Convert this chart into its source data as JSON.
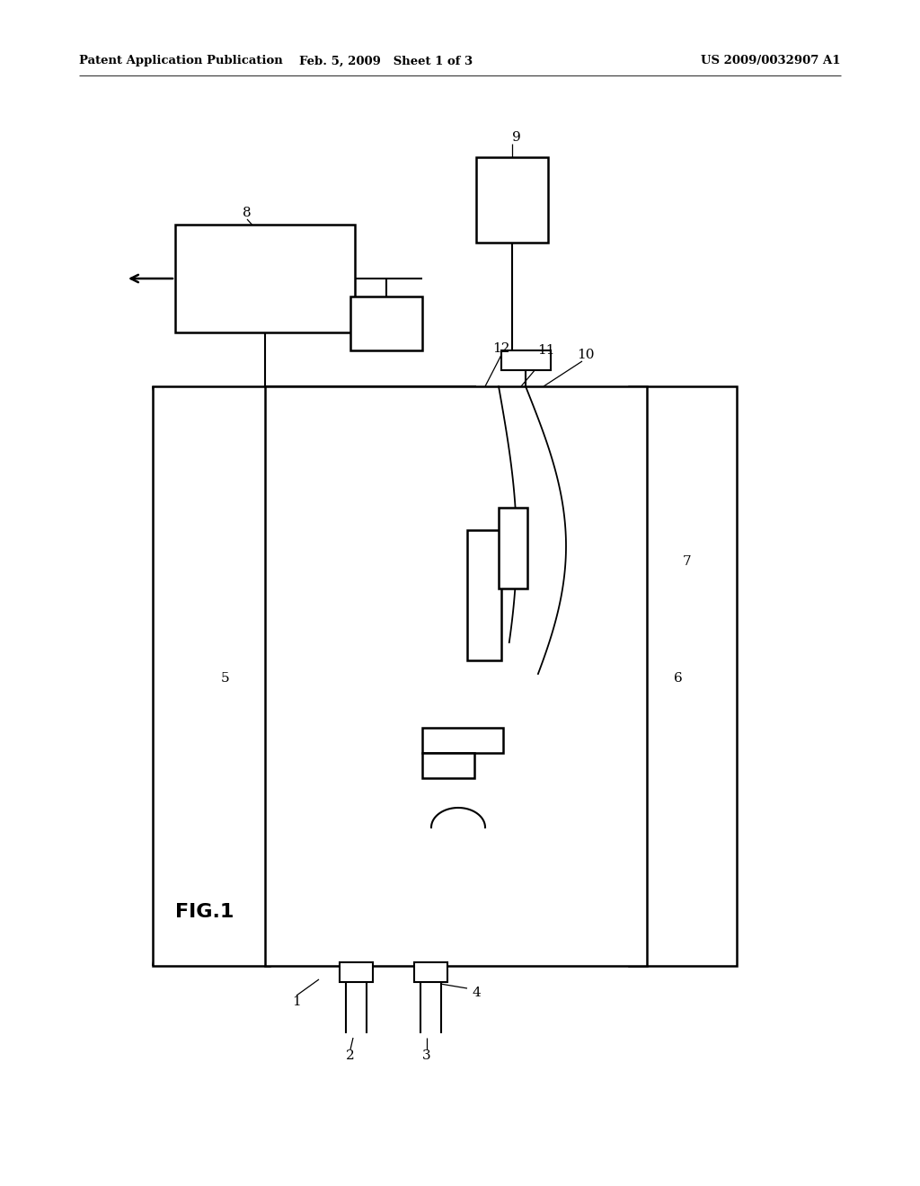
{
  "header_left": "Patent Application Publication",
  "header_mid": "Feb. 5, 2009   Sheet 1 of 3",
  "header_right": "US 2009/0032907 A1",
  "fig_label": "FIG.1",
  "bg": "#ffffff",
  "lc": "#000000"
}
